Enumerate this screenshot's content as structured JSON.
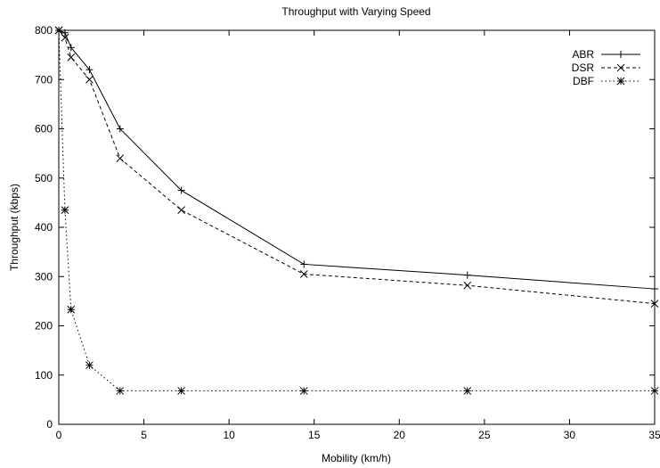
{
  "chart_data": {
    "type": "line",
    "title": "Throughput with Varying Speed",
    "xlabel": "Mobility (km/h)",
    "ylabel": "Throughput (kbps)",
    "xlim": [
      0,
      35
    ],
    "ylim": [
      0,
      800
    ],
    "xticks": [
      0,
      5,
      10,
      15,
      20,
      25,
      30,
      35
    ],
    "yticks": [
      0,
      100,
      200,
      300,
      400,
      500,
      600,
      700,
      800
    ],
    "grid": false,
    "legend_position": "top-right",
    "series": [
      {
        "name": "ABR",
        "line_style": "solid",
        "marker": "plus",
        "x": [
          0,
          0.36,
          0.72,
          1.8,
          3.6,
          7.2,
          14.4,
          24,
          35
        ],
        "y": [
          800,
          795,
          765,
          720,
          600,
          475,
          325,
          303,
          275
        ]
      },
      {
        "name": "DSR",
        "line_style": "dashed",
        "marker": "cross",
        "x": [
          0,
          0.36,
          0.72,
          1.8,
          3.6,
          7.2,
          14.4,
          24,
          35
        ],
        "y": [
          800,
          785,
          745,
          700,
          540,
          435,
          305,
          282,
          245
        ]
      },
      {
        "name": "DBF",
        "line_style": "dotted",
        "marker": "star",
        "x": [
          0,
          0.36,
          0.72,
          1.8,
          3.6,
          7.2,
          14.4,
          24,
          35
        ],
        "y": [
          800,
          435,
          233,
          120,
          68,
          68,
          68,
          68,
          68
        ]
      }
    ]
  }
}
